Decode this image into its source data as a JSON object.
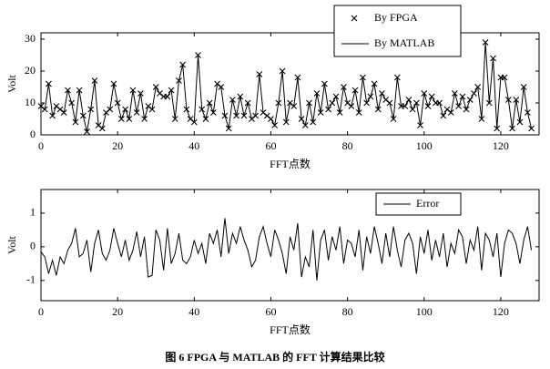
{
  "chart_data": [
    {
      "type": "line",
      "ylabel": "Volt",
      "xlabel": "FFT点数",
      "x": [
        0,
        1,
        2,
        3,
        4,
        5,
        6,
        7,
        8,
        9,
        10,
        11,
        12,
        13,
        14,
        15,
        16,
        17,
        18,
        19,
        20,
        21,
        22,
        23,
        24,
        25,
        26,
        27,
        28,
        29,
        30,
        31,
        32,
        33,
        34,
        35,
        36,
        37,
        38,
        39,
        40,
        41,
        42,
        43,
        44,
        45,
        46,
        47,
        48,
        49,
        50,
        51,
        52,
        53,
        54,
        55,
        56,
        57,
        58,
        59,
        60,
        61,
        62,
        63,
        64,
        65,
        66,
        67,
        68,
        69,
        70,
        71,
        72,
        73,
        74,
        75,
        76,
        77,
        78,
        79,
        80,
        81,
        82,
        83,
        84,
        85,
        86,
        87,
        88,
        89,
        90,
        91,
        92,
        93,
        94,
        95,
        96,
        97,
        98,
        99,
        100,
        101,
        102,
        103,
        104,
        105,
        106,
        107,
        108,
        109,
        110,
        111,
        112,
        113,
        114,
        115,
        116,
        117,
        118,
        119,
        120,
        121,
        122,
        123,
        124,
        125,
        126,
        127,
        128
      ],
      "series": [
        {
          "name": "By FPGA",
          "color": "#000000",
          "marker": "x",
          "values": [
            9,
            8,
            16,
            6,
            9,
            8,
            7,
            14,
            10,
            4,
            14,
            6,
            1,
            8,
            17,
            3,
            2,
            7,
            8,
            16,
            10,
            5,
            8,
            5,
            14,
            7,
            13,
            5,
            9,
            8,
            15,
            13,
            12,
            12,
            14,
            5,
            17,
            22,
            8,
            5,
            4,
            25,
            8,
            5,
            10,
            7,
            16,
            15,
            6,
            2,
            11,
            6,
            12,
            6,
            10,
            5,
            6,
            19,
            7,
            6,
            5,
            3,
            10,
            20,
            4,
            10,
            9,
            18,
            5,
            3,
            10,
            4,
            13,
            7,
            16,
            8,
            10,
            12,
            7,
            15,
            10,
            9,
            14,
            7,
            18,
            10,
            12,
            16,
            8,
            13,
            11,
            10,
            5,
            18,
            9,
            9,
            11,
            8,
            10,
            3,
            13,
            9,
            12,
            10,
            10,
            6,
            8,
            7,
            13,
            9,
            12,
            8,
            11,
            13,
            15,
            5,
            29,
            10,
            24,
            2,
            18,
            18,
            11,
            2,
            11,
            4,
            15,
            7,
            2
          ]
        },
        {
          "name": "By MATLAB",
          "color": "#000000",
          "marker": "none",
          "values": [
            9,
            8,
            16,
            6,
            9,
            8,
            7,
            14,
            10,
            4,
            14,
            6,
            1,
            8,
            17,
            3,
            2,
            7,
            8,
            16,
            10,
            5,
            8,
            5,
            14,
            7,
            13,
            5,
            9,
            8,
            15,
            13,
            12,
            12,
            14,
            5,
            17,
            22,
            8,
            5,
            4,
            25,
            8,
            5,
            10,
            7,
            16,
            15,
            6,
            2,
            11,
            6,
            12,
            6,
            10,
            5,
            6,
            19,
            7,
            6,
            5,
            3,
            10,
            20,
            4,
            10,
            9,
            18,
            5,
            3,
            10,
            4,
            13,
            7,
            16,
            8,
            10,
            12,
            7,
            15,
            10,
            9,
            14,
            7,
            18,
            10,
            12,
            16,
            8,
            13,
            11,
            10,
            5,
            18,
            9,
            9,
            11,
            8,
            10,
            3,
            13,
            9,
            12,
            10,
            10,
            6,
            8,
            7,
            13,
            9,
            12,
            8,
            11,
            13,
            15,
            5,
            29,
            10,
            24,
            2,
            18,
            18,
            11,
            2,
            11,
            4,
            15,
            7,
            2
          ]
        }
      ],
      "xlim": [
        0,
        130
      ],
      "xticks": [
        0,
        20,
        40,
        60,
        80,
        100,
        120
      ],
      "ylim": [
        0,
        32
      ],
      "yticks": [
        0,
        10,
        20,
        30
      ],
      "legend": "upper right"
    },
    {
      "type": "line",
      "ylabel": "Volt",
      "xlabel": "FFT点数",
      "x": [
        0,
        1,
        2,
        3,
        4,
        5,
        6,
        7,
        8,
        9,
        10,
        11,
        12,
        13,
        14,
        15,
        16,
        17,
        18,
        19,
        20,
        21,
        22,
        23,
        24,
        25,
        26,
        27,
        28,
        29,
        30,
        31,
        32,
        33,
        34,
        35,
        36,
        37,
        38,
        39,
        40,
        41,
        42,
        43,
        44,
        45,
        46,
        47,
        48,
        49,
        50,
        51,
        52,
        53,
        54,
        55,
        56,
        57,
        58,
        59,
        60,
        61,
        62,
        63,
        64,
        65,
        66,
        67,
        68,
        69,
        70,
        71,
        72,
        73,
        74,
        75,
        76,
        77,
        78,
        79,
        80,
        81,
        82,
        83,
        84,
        85,
        86,
        87,
        88,
        89,
        90,
        91,
        92,
        93,
        94,
        95,
        96,
        97,
        98,
        99,
        100,
        101,
        102,
        103,
        104,
        105,
        106,
        107,
        108,
        109,
        110,
        111,
        112,
        113,
        114,
        115,
        116,
        117,
        118,
        119,
        120,
        121,
        122,
        123,
        124,
        125,
        126,
        127,
        128
      ],
      "series": [
        {
          "name": "Error",
          "color": "#000000",
          "marker": "none",
          "values": [
            -0.15,
            -0.3,
            -0.8,
            -0.4,
            -0.85,
            -0.3,
            -0.5,
            -0.1,
            0.1,
            0.55,
            -0.3,
            -0.2,
            0.2,
            -0.75,
            0.1,
            0.5,
            -0.2,
            -0.4,
            -0.1,
            0.55,
            0.1,
            -0.3,
            0.2,
            -0.4,
            -0.1,
            0.45,
            -0.3,
            0.3,
            -0.9,
            -0.85,
            0.5,
            0.2,
            -0.7,
            0.55,
            -0.5,
            -0.2,
            0.4,
            -0.4,
            -0.5,
            -0.3,
            0.2,
            -0.2,
            0.1,
            -0.5,
            0.4,
            0.1,
            0.5,
            -0.3,
            0.85,
            -0.2,
            0.4,
            0.1,
            0.6,
            0.2,
            -0.1,
            -0.6,
            -0.4,
            0.3,
            0.6,
            0.1,
            -0.3,
            0.5,
            0.2,
            -0.2,
            -0.8,
            0.3,
            -0.1,
            0.7,
            -0.9,
            -0.3,
            -0.6,
            0.5,
            -1.0,
            0.2,
            0.5,
            -0.4,
            0.3,
            -0.1,
            0.6,
            -0.5,
            0.2,
            0.1,
            -0.3,
            0.5,
            -0.7,
            0.3,
            -0.2,
            0.6,
            0.1,
            -0.5,
            0.4,
            -0.3,
            0.6,
            -0.1,
            -0.6,
            0.2,
            0.4,
            0.1,
            -0.8,
            0.3,
            -0.2,
            0.5,
            -0.4,
            0.2,
            -0.3,
            0.4,
            -0.6,
            0.1,
            -0.2,
            0.5,
            0.3,
            -0.5,
            0.2,
            -0.1,
            0.6,
            -0.7,
            0.4,
            0.2,
            -0.3,
            0.4,
            -0.9,
            0.1,
            0.5,
            0.4,
            0.1,
            -0.5,
            0.2,
            0.6,
            -0.1
          ]
        }
      ],
      "xlim": [
        0,
        130
      ],
      "xticks": [
        0,
        20,
        40,
        60,
        80,
        100,
        120
      ],
      "ylim": [
        -1.6,
        1.7
      ],
      "yticks": [
        -1,
        0,
        1
      ],
      "legend": "upper right"
    }
  ],
  "caption": "图 6   FPGA 与 MATLAB 的 FFT 计算结果比较"
}
